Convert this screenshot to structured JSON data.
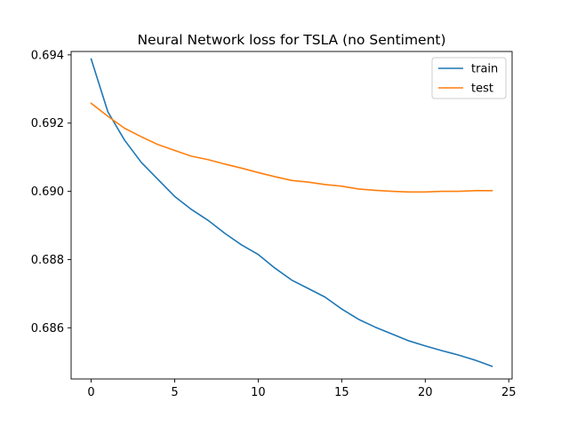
{
  "chart_data": {
    "type": "line",
    "title": "Neural Network loss for TSLA (no Sentiment)",
    "xlabel": "",
    "ylabel": "",
    "xlim": [
      -1.2,
      25.2
    ],
    "ylim": [
      0.6845,
      0.6941
    ],
    "x_ticks": [
      0,
      5,
      10,
      15,
      20,
      25
    ],
    "y_ticks": [
      0.686,
      0.688,
      0.69,
      0.692,
      0.694
    ],
    "y_tick_labels": [
      "0.686",
      "0.688",
      "0.690",
      "0.692",
      "0.694"
    ],
    "grid": false,
    "legend_position": "top-right",
    "x": [
      0,
      1,
      2,
      3,
      4,
      5,
      6,
      7,
      8,
      9,
      10,
      11,
      12,
      13,
      14,
      15,
      16,
      17,
      18,
      19,
      20,
      21,
      22,
      23,
      24
    ],
    "series": [
      {
        "name": "train",
        "color": "#1f77b4",
        "values": [
          0.69388,
          0.69233,
          0.6915,
          0.69085,
          0.69035,
          0.68985,
          0.68947,
          0.68915,
          0.68877,
          0.68843,
          0.68815,
          0.68775,
          0.6874,
          0.68715,
          0.6869,
          0.68655,
          0.68625,
          0.68602,
          0.68582,
          0.68562,
          0.68547,
          0.68533,
          0.6852,
          0.68505,
          0.68487
        ]
      },
      {
        "name": "test",
        "color": "#ff7f0e",
        "values": [
          0.69258,
          0.6922,
          0.69185,
          0.6916,
          0.69137,
          0.6912,
          0.69103,
          0.69093,
          0.6908,
          0.69068,
          0.69055,
          0.69043,
          0.69032,
          0.69027,
          0.6902,
          0.69015,
          0.69007,
          0.69003,
          0.69,
          0.68998,
          0.68998,
          0.69,
          0.69,
          0.69002,
          0.69002
        ]
      }
    ]
  }
}
